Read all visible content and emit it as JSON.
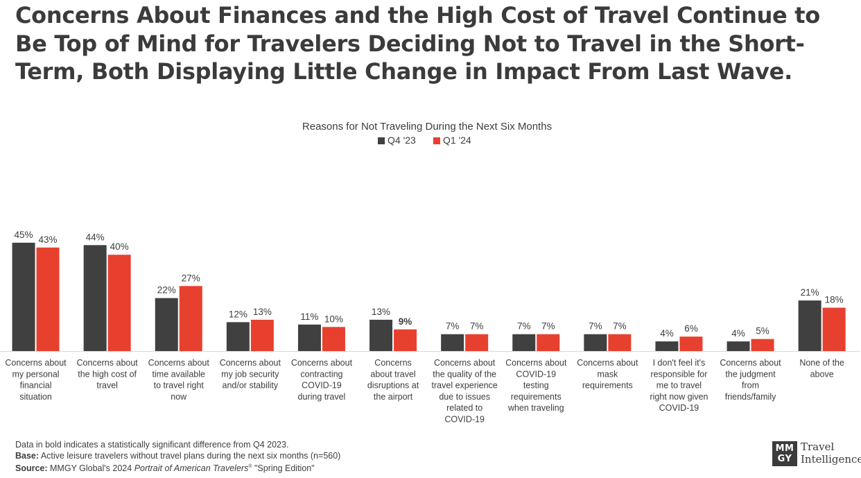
{
  "headline": "Concerns About Finances and the High Cost of Travel Continue to Be Top of Mind for Travelers Deciding Not to Travel in the Short-Term, Both Displaying Little Change in Impact From Last Wave.",
  "colors": {
    "q4": "#404040",
    "q1": "#e8402f",
    "text": "#3d3d3d"
  },
  "chart_data": {
    "type": "bar",
    "title": "Reasons for Not Traveling During the Next Six Months",
    "xlabel": "",
    "ylabel": "",
    "ylim": [
      0,
      50
    ],
    "legend_position": "top-center",
    "categories": [
      "Concerns about my personal financial situation",
      "Concerns about the high cost of travel",
      "Concerns about time available to travel right now",
      "Concerns about my job security and/or stability",
      "Concerns about contracting COVID-19 during travel",
      "Concerns about travel disruptions at the airport",
      "Concerns about the quality of the travel experience due to issues related to COVID-19",
      "Concerns about COVID-19 testing requirements when traveling",
      "Concerns about mask requirements",
      "I don't feel it's responsible for me to travel right now given COVID-19",
      "Concerns about the judgment from friends/family",
      "None of the above"
    ],
    "category_lines": [
      [
        "Concerns about",
        "my personal",
        "financial",
        "situation"
      ],
      [
        "Concerns about",
        "the high cost of",
        "travel"
      ],
      [
        "Concerns about",
        "time available",
        "to travel right",
        "now"
      ],
      [
        "Concerns about",
        "my job security",
        "and/or stability"
      ],
      [
        "Concerns about",
        "contracting",
        "COVID-19",
        "during travel"
      ],
      [
        "Concerns",
        "about travel",
        "disruptions at",
        "the airport"
      ],
      [
        "Concerns about",
        "the quality of the",
        "travel experience",
        "due to issues",
        "related to",
        "COVID-19"
      ],
      [
        "Concerns about",
        "COVID-19",
        "testing",
        "requirements",
        "when traveling"
      ],
      [
        "Concerns about",
        "mask",
        "requirements"
      ],
      [
        "I don't feel it's",
        "responsible for",
        "me to travel",
        "right now given",
        "COVID-19"
      ],
      [
        "Concerns about",
        "the judgment",
        "from",
        "friends/family"
      ],
      [
        "None of the",
        "above"
      ]
    ],
    "series": [
      {
        "name": "Q4 '23",
        "values": [
          45,
          44,
          22,
          12,
          11,
          13,
          7,
          7,
          7,
          4,
          4,
          21
        ],
        "labels": [
          "45%",
          "44%",
          "22%",
          "12%",
          "11%",
          "13%",
          "7%",
          "7%",
          "7%",
          "4%",
          "4%",
          "21%"
        ],
        "bold": [
          false,
          false,
          false,
          false,
          false,
          false,
          false,
          false,
          false,
          false,
          false,
          false
        ]
      },
      {
        "name": "Q1 '24",
        "values": [
          43,
          40,
          27,
          13,
          10,
          9,
          7,
          7,
          7,
          6,
          5,
          18
        ],
        "labels": [
          "43%",
          "40%",
          "27%",
          "13%",
          "10%",
          "9%",
          "7%",
          "7%",
          "7%",
          "6%",
          "5%",
          "18%"
        ],
        "bold": [
          false,
          false,
          false,
          false,
          false,
          true,
          false,
          false,
          false,
          false,
          false,
          false
        ]
      }
    ]
  },
  "footnotes": {
    "bold_note": "Data in bold indicates a statistically significant difference from Q4 2023.",
    "base_label": "Base:",
    "base_text": " Active leisure travelers without travel plans during the next six months (n=560)",
    "source_label": "Source:",
    "source_text_1": " MMGY Global's 2024 ",
    "source_italic": "Portrait of American Travelers",
    "source_reg": "®",
    "source_text_2": " \"Spring Edition\""
  },
  "logo": {
    "mark_top": "MM",
    "mark_bottom": "GY",
    "line1": "Travel",
    "line2": "Intelligence"
  }
}
